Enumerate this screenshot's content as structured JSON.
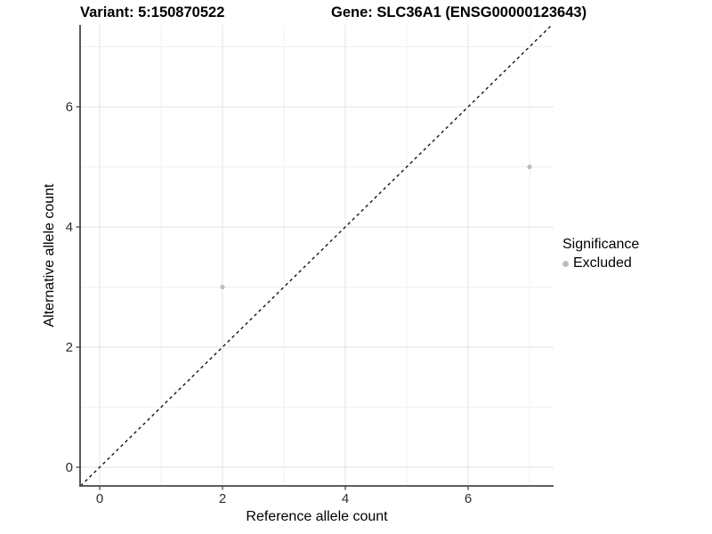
{
  "title": {
    "variant": "Variant: 5:150870522",
    "gene": "Gene: SLC36A1 (ENSG00000123643)"
  },
  "chart_data": {
    "type": "scatter",
    "title": "Variant: 5:150870522   Gene: SLC36A1 (ENSG00000123643)",
    "xlabel": "Reference allele count",
    "ylabel": "Alternative allele count",
    "x_ticks": [
      0,
      2,
      4,
      6
    ],
    "y_ticks": [
      0,
      2,
      4,
      6
    ],
    "x_minor_ticks": [
      1,
      3,
      5,
      7
    ],
    "y_minor_ticks": [
      1,
      3,
      5,
      7
    ],
    "xlim": [
      -0.32,
      7.39
    ],
    "ylim": [
      -0.31,
      7.36
    ],
    "grid": true,
    "points": [
      {
        "x": 2,
        "y": 3,
        "series": "Excluded"
      },
      {
        "x": 7,
        "y": 5,
        "series": "Excluded"
      }
    ],
    "reference_line": {
      "slope": 1,
      "intercept": 0,
      "style": "dashed"
    },
    "legend": {
      "title": "Significance",
      "position": "right",
      "entries": [
        {
          "label": "Excluded",
          "color": "#bdbdbd"
        }
      ]
    }
  },
  "colors": {
    "point": "#bdbdbd",
    "axis_line": "#474747",
    "grid_major": "#e3e3e3",
    "grid_minor": "#f0f0f0",
    "dashed_line": "#141414",
    "tick_label": "#2e2e2e",
    "background": "#ffffff"
  }
}
